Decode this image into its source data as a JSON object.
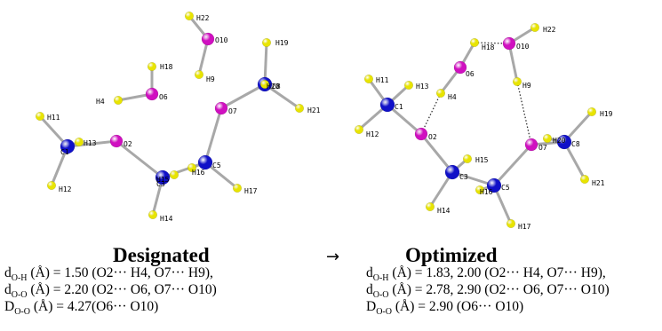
{
  "colors": {
    "carbon": "#1010c8",
    "oxygen": "#d010c0",
    "hydrogen": "#e8e400",
    "bond": "#a8a8a8"
  },
  "arrow": "→",
  "panels": [
    {
      "caption": "Designated",
      "lines": [
        {
          "sym": "d",
          "sub": "O-H",
          "text": " (Å) = 1.50 (O2··· H4, O7··· H9),",
          "bold": false
        },
        {
          "sym": "d",
          "sub": "O-O",
          "text": " (Å) = 2.20 (O2··· O6, O7··· O10)",
          "bold": false
        },
        {
          "sym": "D",
          "sub": "O-O",
          "text": " (Å) = 4.27(O6··· O10)",
          "bold": false
        }
      ]
    },
    {
      "caption": "Optimized",
      "lines": [
        {
          "sym": "d",
          "sub": "O-H",
          "text": " (Å) = 1.83, 2.00 (O2··· H4, O7··· H9),",
          "bold": false
        },
        {
          "sym": "d",
          "sub": "O-O",
          "text": " (Å) = 2.78, 2.90 (O2··· O6, O7··· O10)",
          "bold": false
        },
        {
          "sym": "D",
          "sub": "O-O",
          "text": " (Å) = 2.90 (O6··· O10)",
          "bold": false
        }
      ]
    }
  ],
  "structures": [
    {
      "atoms": [
        {
          "id": "H22",
          "el": "H",
          "label": "H22"
        },
        {
          "id": "O10",
          "el": "O",
          "label": "O10"
        },
        {
          "id": "H9",
          "el": "H",
          "label": "H9"
        },
        {
          "id": "H18",
          "el": "H",
          "label": "H18"
        },
        {
          "id": "O6",
          "el": "O",
          "label": "O6"
        },
        {
          "id": "H4",
          "el": "H",
          "label": "H4"
        },
        {
          "id": "H19",
          "el": "H",
          "label": "H19"
        },
        {
          "id": "C8",
          "el": "C",
          "label": "C8"
        },
        {
          "id": "H20",
          "el": "H",
          "label": "H20"
        },
        {
          "id": "H21",
          "el": "H",
          "label": "H21"
        },
        {
          "id": "O7",
          "el": "O",
          "label": "O7"
        },
        {
          "id": "H11",
          "el": "H",
          "label": "H11"
        },
        {
          "id": "C1",
          "el": "C",
          "label": "C1"
        },
        {
          "id": "H13",
          "el": "H",
          "label": "H13"
        },
        {
          "id": "O2",
          "el": "O",
          "label": "O2"
        },
        {
          "id": "H12",
          "el": "H",
          "label": "H12"
        },
        {
          "id": "C3",
          "el": "C",
          "label": "C3"
        },
        {
          "id": "H15",
          "el": "H",
          "label": "H15"
        },
        {
          "id": "H16",
          "el": "H",
          "label": "H16"
        },
        {
          "id": "C5",
          "el": "C",
          "label": "C5"
        },
        {
          "id": "H17",
          "el": "H",
          "label": "H17"
        },
        {
          "id": "H14",
          "el": "H",
          "label": "H14"
        }
      ],
      "bonds": [
        [
          "H22",
          "O10"
        ],
        [
          "O10",
          "H9"
        ],
        [
          "H18",
          "O6"
        ],
        [
          "O6",
          "H4"
        ],
        [
          "C8",
          "H19"
        ],
        [
          "C8",
          "H20"
        ],
        [
          "C8",
          "H21"
        ],
        [
          "C8",
          "O7"
        ],
        [
          "O7",
          "C5"
        ],
        [
          "C5",
          "H16"
        ],
        [
          "C5",
          "H17"
        ],
        [
          "C5",
          "C3"
        ],
        [
          "C3",
          "H15"
        ],
        [
          "C3",
          "H14"
        ],
        [
          "C3",
          "O2"
        ],
        [
          "O2",
          "C1"
        ],
        [
          "C1",
          "H11"
        ],
        [
          "C1",
          "H12"
        ],
        [
          "C1",
          "H13"
        ]
      ],
      "hbonds": []
    },
    {
      "atoms": [
        {
          "id": "H22",
          "el": "H",
          "label": "H22"
        },
        {
          "id": "O10",
          "el": "O",
          "label": "O10"
        },
        {
          "id": "H18",
          "el": "H",
          "label": "H18"
        },
        {
          "id": "O6",
          "el": "O",
          "label": "O6"
        },
        {
          "id": "H9",
          "el": "H",
          "label": "H9"
        },
        {
          "id": "H4",
          "el": "H",
          "label": "H4"
        },
        {
          "id": "H11",
          "el": "H",
          "label": "H11"
        },
        {
          "id": "H13",
          "el": "H",
          "label": "H13"
        },
        {
          "id": "C1",
          "el": "C",
          "label": "C1"
        },
        {
          "id": "H12",
          "el": "H",
          "label": "H12"
        },
        {
          "id": "O2",
          "el": "O",
          "label": "O2"
        },
        {
          "id": "H15",
          "el": "H",
          "label": "H15"
        },
        {
          "id": "C3",
          "el": "C",
          "label": "C3"
        },
        {
          "id": "H14",
          "el": "H",
          "label": "H14"
        },
        {
          "id": "H16",
          "el": "H",
          "label": "H16"
        },
        {
          "id": "C5",
          "el": "C",
          "label": "C5"
        },
        {
          "id": "H17",
          "el": "H",
          "label": "H17"
        },
        {
          "id": "O7",
          "el": "O",
          "label": "O7"
        },
        {
          "id": "H20",
          "el": "H",
          "label": "H20"
        },
        {
          "id": "C8",
          "el": "C",
          "label": "C8"
        },
        {
          "id": "H19",
          "el": "H",
          "label": "H19"
        },
        {
          "id": "H21",
          "el": "H",
          "label": "H21"
        }
      ],
      "bonds": [
        [
          "H22",
          "O10"
        ],
        [
          "O10",
          "H9"
        ],
        [
          "H18",
          "O6"
        ],
        [
          "O6",
          "H4"
        ],
        [
          "C1",
          "H11"
        ],
        [
          "C1",
          "H12"
        ],
        [
          "C1",
          "H13"
        ],
        [
          "C1",
          "O2"
        ],
        [
          "O2",
          "C3"
        ],
        [
          "C3",
          "H15"
        ],
        [
          "C3",
          "H14"
        ],
        [
          "C3",
          "C5"
        ],
        [
          "C5",
          "H16"
        ],
        [
          "C5",
          "H17"
        ],
        [
          "C5",
          "O7"
        ],
        [
          "O7",
          "C8"
        ],
        [
          "C8",
          "H19"
        ],
        [
          "C8",
          "H20"
        ],
        [
          "C8",
          "H21"
        ]
      ],
      "hbonds": [
        [
          "H18",
          "O10"
        ],
        [
          "H4",
          "O2"
        ],
        [
          "H9",
          "O7"
        ]
      ]
    }
  ]
}
